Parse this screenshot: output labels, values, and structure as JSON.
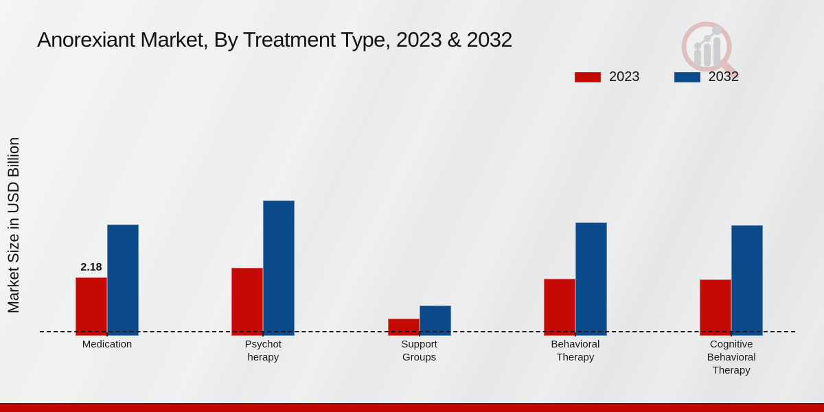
{
  "title": "Anorexiant Market, By Treatment Type, 2023 & 2032",
  "ylabel": "Market Size in USD Billion",
  "colors": {
    "series_2023": "#c40a02",
    "series_2032": "#0b4a8b",
    "footer_strip": "#c20802",
    "background": "#e9eaeb",
    "axis": "#161616"
  },
  "logo": {
    "icon": "magnifier-bar-chart-logo"
  },
  "legend": {
    "position": "top-right",
    "items": [
      {
        "label": "2023",
        "color": "#c40a02"
      },
      {
        "label": "2032",
        "color": "#0b4a8b"
      }
    ]
  },
  "chart_data": {
    "type": "bar",
    "title": "Anorexiant Market, By Treatment Type, 2023 & 2032",
    "xlabel": "",
    "ylabel": "Market Size in USD Billion",
    "categories": [
      "Medication",
      "Psychotherapy",
      "Support Groups",
      "Behavioral Therapy",
      "Cognitive Behavioral Therapy"
    ],
    "category_display_lines": [
      [
        "Medication"
      ],
      [
        "Psychot",
        "herapy"
      ],
      [
        "Support",
        "Groups"
      ],
      [
        "Behavioral",
        "Therapy"
      ],
      [
        "Cognitive",
        "Behavioral",
        "Therapy"
      ]
    ],
    "series": [
      {
        "name": "2023",
        "color": "#c40a02",
        "values": [
          2.18,
          2.56,
          0.55,
          2.13,
          2.1
        ]
      },
      {
        "name": "2032",
        "color": "#0b4a8b",
        "values": [
          4.28,
          5.23,
          1.06,
          4.36,
          4.25
        ]
      }
    ],
    "data_labels": [
      {
        "category_index": 0,
        "series_index": 0,
        "text": "2.18"
      }
    ],
    "ylim": [
      0,
      5.5
    ],
    "grid": false,
    "y_axis_ticks_visible": false,
    "baseline_style": "dashed",
    "legend_position": "top-right"
  }
}
